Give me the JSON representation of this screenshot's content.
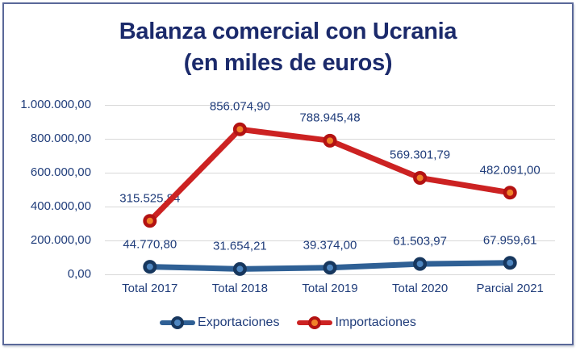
{
  "frame": {
    "border_color": "#5a6899",
    "background": "#ffffff"
  },
  "colors": {
    "title_text": "#1b2a6b",
    "label_text": "#1f3c7a",
    "gridline": "#d8d8d8"
  },
  "chart_data": {
    "type": "line",
    "title": "Balanza comercial con Ucrania",
    "subtitle": "(en miles de euros)",
    "categories": [
      "Total 2017",
      "Total 2018",
      "Total 2019",
      "Total 2020",
      "Parcial 2021"
    ],
    "series": [
      {
        "name": "Exportaciones",
        "line_color": "#2f6095",
        "marker_fill": "#4e86c0",
        "marker_border": "#17375e",
        "values": [
          44770.8,
          31654.21,
          39374.0,
          61503.97,
          67959.61
        ],
        "labels": [
          "44.770,80",
          "31.654,21",
          "39.374,00",
          "61.503,97",
          "67.959,61"
        ]
      },
      {
        "name": "Importaciones",
        "line_color": "#cc2222",
        "marker_fill": "#f08228",
        "marker_border": "#b31212",
        "values": [
          315525.84,
          856074.9,
          788945.48,
          569301.79,
          482091.0
        ],
        "labels": [
          "315.525,84",
          "856.074,90",
          "788.945,48",
          "569.301,79",
          "482.091,00"
        ]
      }
    ],
    "y_axis": {
      "min": 0,
      "max": 1000000,
      "step": 200000,
      "tick_labels": [
        "0,00",
        "200.000,00",
        "400.000,00",
        "600.000,00",
        "800.000,00",
        "1.000.000,00"
      ]
    },
    "grid": true,
    "legend_position": "bottom"
  }
}
